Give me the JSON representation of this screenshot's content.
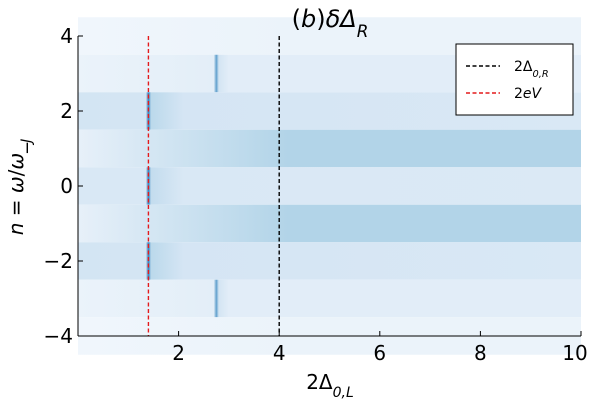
{
  "chart_data": {
    "type": "heatmap",
    "title": "(b)δΔ_R",
    "xlabel": "2Δ_{0,L}",
    "ylabel": "n = ω/ω_J",
    "xlim": [
      0,
      10
    ],
    "ylim": [
      -4,
      4
    ],
    "x_ticks": [
      2,
      4,
      6,
      8,
      10
    ],
    "y_ticks": [
      -4,
      -2,
      0,
      2,
      4
    ],
    "x_tick_labels": [
      "2",
      "4",
      "6",
      "8",
      "10"
    ],
    "y_tick_labels": [
      "−4",
      "−2",
      "0",
      "2",
      "4"
    ],
    "grid": false,
    "legend_position": "top-right",
    "colormap": [
      "#f4f8fd",
      "#d6e6f4",
      "#9ecae1",
      "#2f7ebc"
    ],
    "reference_lines": [
      {
        "name": "2Δ_{0,R}",
        "x": 4.0,
        "color": "#000000",
        "style": "dashed"
      },
      {
        "name": "2eV",
        "x": 1.4,
        "color": "#e41a1c",
        "style": "dashed"
      }
    ],
    "bands": [
      {
        "n": 4,
        "base": 0.04,
        "rise_to": 0.1,
        "rise_end": 4.2,
        "peaks": []
      },
      {
        "n": 3,
        "base": 0.1,
        "rise_to": 0.2,
        "rise_end": 3.0,
        "peaks": [
          {
            "x": 2.75,
            "value": 0.85
          }
        ]
      },
      {
        "n": 2,
        "base": 0.35,
        "rise_to": 0.3,
        "rise_end": 10,
        "peaks": [
          {
            "x": 1.4,
            "value": 1.0
          }
        ]
      },
      {
        "n": 1,
        "base": 0.15,
        "rise_to": 0.55,
        "rise_end": 4.2,
        "peaks": []
      },
      {
        "n": 0,
        "base": 0.3,
        "rise_to": 0.28,
        "rise_end": 10,
        "peaks": [
          {
            "x": 1.4,
            "value": 1.0
          }
        ]
      },
      {
        "n": -1,
        "base": 0.15,
        "rise_to": 0.55,
        "rise_end": 4.2,
        "peaks": []
      },
      {
        "n": -2,
        "base": 0.35,
        "rise_to": 0.3,
        "rise_end": 10,
        "peaks": [
          {
            "x": 1.4,
            "value": 1.0
          }
        ]
      },
      {
        "n": -3,
        "base": 0.1,
        "rise_to": 0.2,
        "rise_end": 3.0,
        "peaks": [
          {
            "x": 2.75,
            "value": 0.85
          }
        ]
      },
      {
        "n": -4,
        "base": 0.04,
        "rise_to": 0.1,
        "rise_end": 4.2,
        "peaks": []
      }
    ]
  }
}
